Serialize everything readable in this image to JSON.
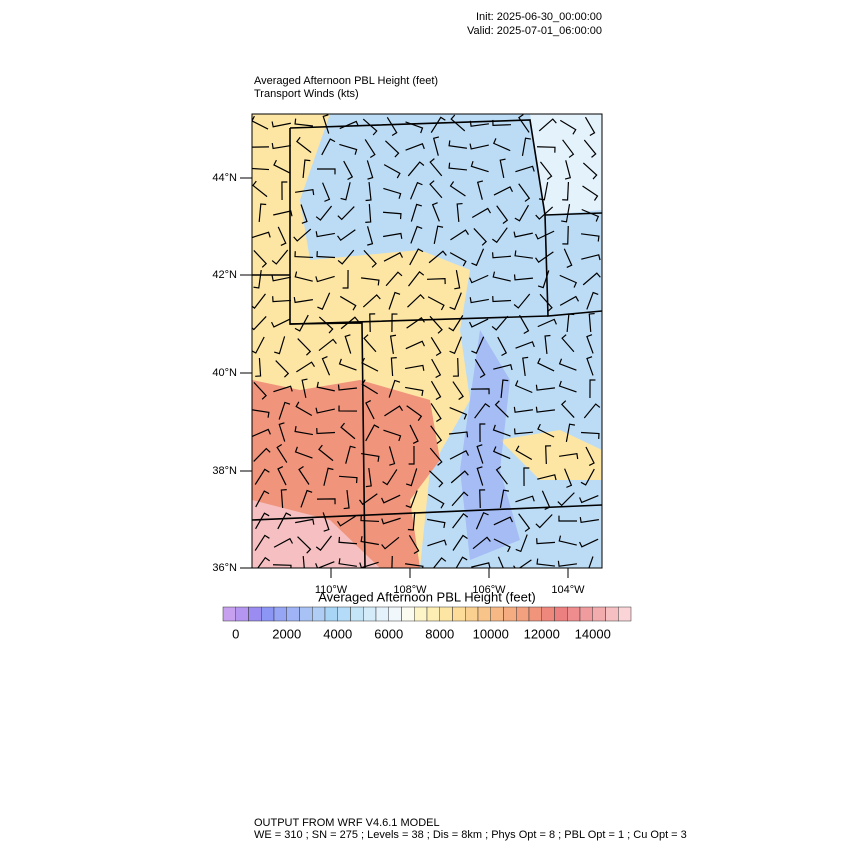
{
  "header": {
    "init": "Init: 2025-06-30_00:00:00",
    "valid": "Valid: 2025-07-01_06:00:00"
  },
  "map": {
    "title": "Averaged Afternoon PBL Height   (feet)",
    "subtitle": "Transport Winds   (kts)",
    "lat_labels": [
      "44°N",
      "42°N",
      "40°N",
      "38°N",
      "36°N"
    ],
    "lon_labels": [
      "110°W",
      "108°W",
      "106°W",
      "104°W"
    ]
  },
  "colorbar": {
    "title": "Averaged Afternoon PBL Height  (feet)",
    "range": [
      -500,
      15500
    ],
    "colors": [
      "#c8a0f0",
      "#b496f0",
      "#9a8cf0",
      "#8c96f5",
      "#96a6f5",
      "#a0b4f5",
      "#a8c2f5",
      "#b0cef5",
      "#a8d4f5",
      "#b4dcf8",
      "#c4e4f8",
      "#d4ecfa",
      "#e4f2fb",
      "#f0f8fc",
      "#fbfbf0",
      "#fdf4c8",
      "#fdeeb4",
      "#fde6a4",
      "#fcdc98",
      "#fad090",
      "#f8c48a",
      "#f6b884",
      "#f4ac80",
      "#f2a07e",
      "#f0947c",
      "#ee887c",
      "#ec8080",
      "#ee8c8e",
      "#f09c9e",
      "#f2acae",
      "#f6c0c2",
      "#fad4d6"
    ],
    "ticks": [
      0,
      2000,
      4000,
      6000,
      8000,
      10000,
      12000,
      14000
    ]
  },
  "footer": {
    "line1": "OUTPUT FROM WRF V4.6.1 MODEL",
    "line2": "WE = 310 ; SN = 275 ; Levels = 38 ; Dis = 8km ; Phys Opt = 8 ; PBL Opt = 1 ; Cu Opt = 3"
  }
}
